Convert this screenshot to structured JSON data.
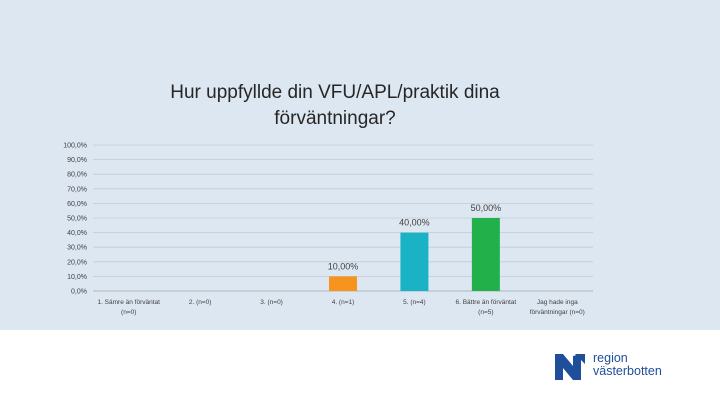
{
  "chart_data": {
    "type": "bar",
    "title": "Hur uppfyllde din VFU/APL/praktik dina förväntningar?",
    "categories": [
      [
        "1. Sämre än förväntat",
        "(n=0)"
      ],
      [
        "2. (n=0)"
      ],
      [
        "3. (n=0)"
      ],
      [
        "4. (n=1)"
      ],
      [
        "5. (n=4)"
      ],
      [
        "6. Bättre än förväntat",
        "(n=5)"
      ],
      [
        "Jag hade inga",
        "förväntningar (n=0)"
      ]
    ],
    "values": [
      0,
      0,
      0,
      10,
      40,
      50,
      0
    ],
    "data_labels": [
      "",
      "",
      "",
      "10,00%",
      "40,00%",
      "50,00%",
      ""
    ],
    "bar_colors": [
      "#4f81bd",
      "#4f81bd",
      "#4f81bd",
      "#f7941d",
      "#1ab3c6",
      "#22b04b",
      "#4f81bd"
    ],
    "yticks": [
      "0,0%",
      "10,0%",
      "20,0%",
      "30,0%",
      "40,0%",
      "50,0%",
      "60,0%",
      "70,0%",
      "80,0%",
      "90,0%",
      "100,0%"
    ],
    "ylim": [
      0,
      100
    ],
    "grid": true,
    "legend": "none"
  },
  "logo": {
    "line1": "region",
    "line2": "västerbotten",
    "color": "#1f4e9b"
  }
}
